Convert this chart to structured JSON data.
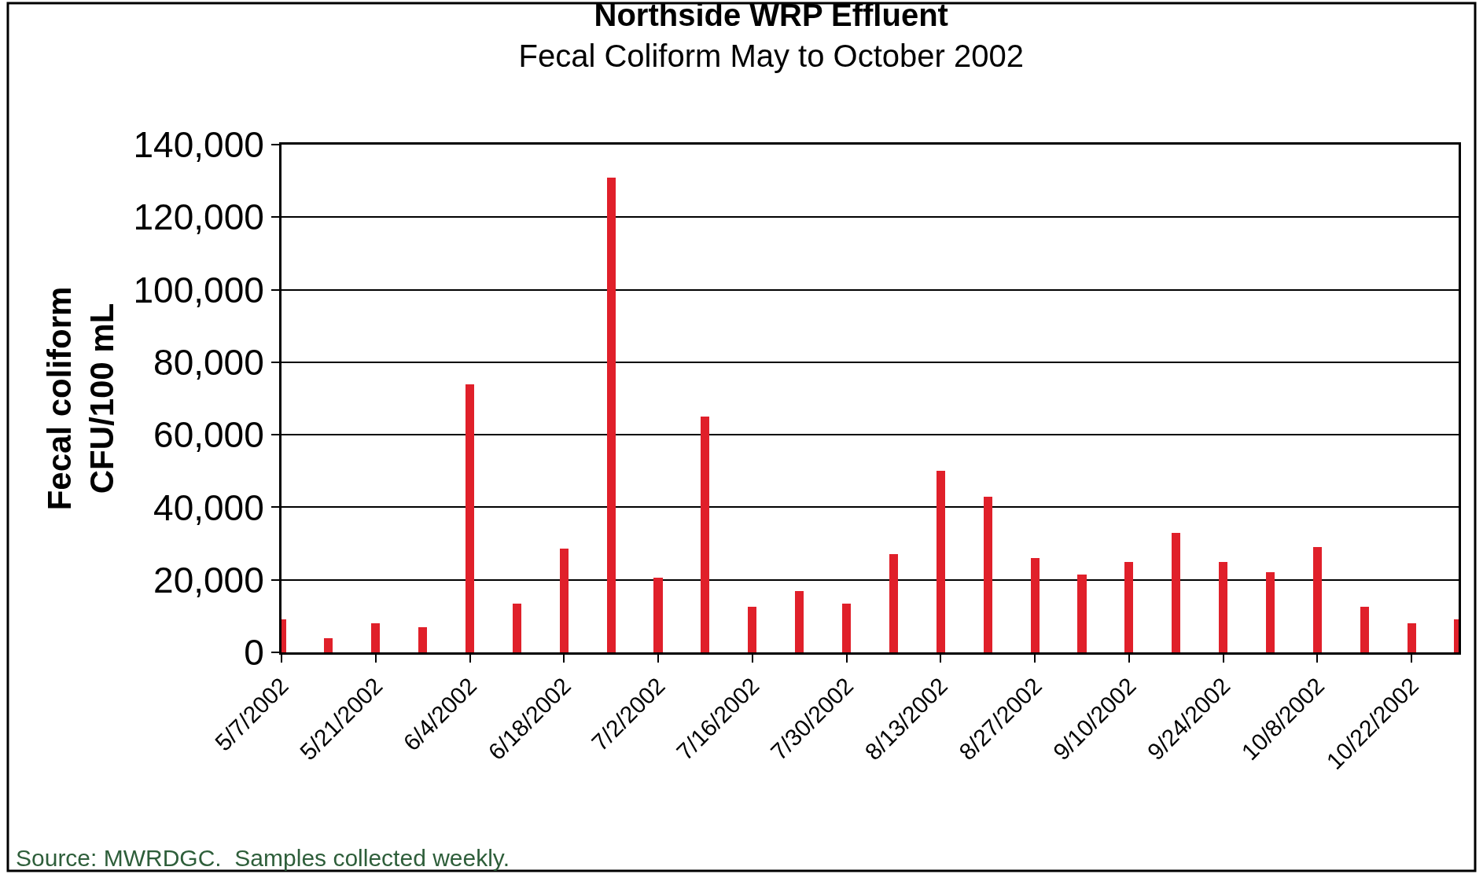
{
  "chart_data": {
    "type": "bar",
    "title": "Northside WRP Effluent",
    "subtitle": "Fecal Coliform May to October 2002",
    "ylabel": "Fecal coliform\nCFU/100 mL",
    "x": [
      "2002-05-07",
      "2002-05-14",
      "2002-05-21",
      "2002-05-28",
      "2002-06-04",
      "2002-06-11",
      "2002-06-18",
      "2002-06-25",
      "2002-07-02",
      "2002-07-09",
      "2002-07-16",
      "2002-07-23",
      "2002-07-30",
      "2002-08-06",
      "2002-08-13",
      "2002-08-20",
      "2002-08-27",
      "2002-09-03",
      "2002-09-10",
      "2002-09-17",
      "2002-09-24",
      "2002-10-01",
      "2002-10-08",
      "2002-10-15",
      "2002-10-22",
      "2002-10-29"
    ],
    "values": [
      9000,
      4000,
      8000,
      7000,
      74000,
      13500,
      28700,
      131000,
      20600,
      65000,
      12500,
      17000,
      13500,
      27000,
      50000,
      43000,
      26000,
      21500,
      25000,
      33000,
      25000,
      22000,
      29000,
      12500,
      8000,
      9000
    ],
    "color": "#e0202a",
    "xlim": [
      "2002-05-07",
      "2002-10-29"
    ],
    "xticks": [
      {
        "value": "2002-05-07",
        "label": "5/7/2002"
      },
      {
        "value": "2002-05-21",
        "label": "5/21/2002"
      },
      {
        "value": "2002-06-04",
        "label": "6/4/2002"
      },
      {
        "value": "2002-06-18",
        "label": "6/18/2002"
      },
      {
        "value": "2002-07-02",
        "label": "7/2/2002"
      },
      {
        "value": "2002-07-16",
        "label": "7/16/2002"
      },
      {
        "value": "2002-07-30",
        "label": "7/30/2002"
      },
      {
        "value": "2002-08-13",
        "label": "8/13/2002"
      },
      {
        "value": "2002-08-27",
        "label": "8/27/2002"
      },
      {
        "value": "2002-09-10",
        "label": "9/10/2002"
      },
      {
        "value": "2002-09-24",
        "label": "9/24/2002"
      },
      {
        "value": "2002-10-08",
        "label": "10/8/2002"
      },
      {
        "value": "2002-10-22",
        "label": "10/22/2002"
      }
    ],
    "ylim": [
      0,
      140000
    ],
    "yticks": [
      {
        "value": 0,
        "label": "0"
      },
      {
        "value": 20000,
        "label": "20,000"
      },
      {
        "value": 40000,
        "label": "40,000"
      },
      {
        "value": 60000,
        "label": "60,000"
      },
      {
        "value": 80000,
        "label": "80,000"
      },
      {
        "value": 100000,
        "label": "100,000"
      },
      {
        "value": 120000,
        "label": "120,000"
      },
      {
        "value": 140000,
        "label": "140,000"
      }
    ],
    "grid": "y",
    "annotations": [
      "Source: MWRDGC.  Samples collected weekly."
    ]
  }
}
